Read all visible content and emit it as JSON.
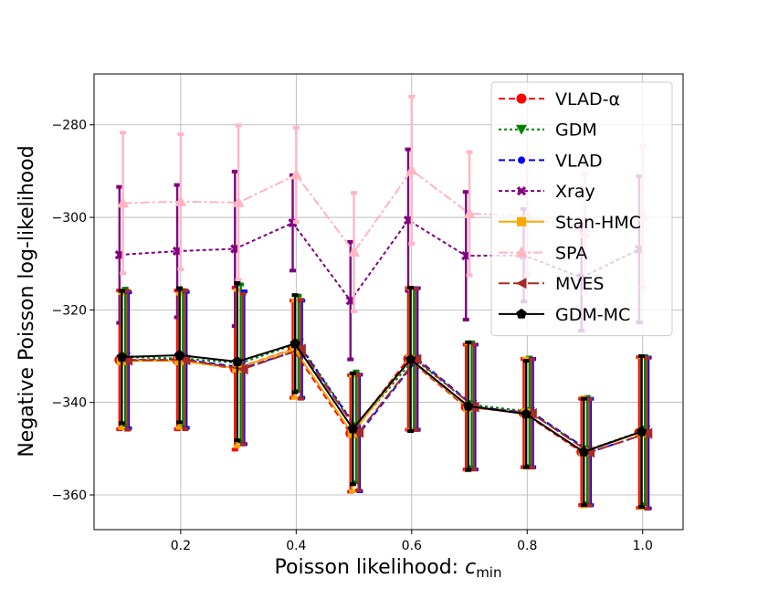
{
  "chart_data": {
    "type": "line",
    "title": "",
    "xlabel": "Poisson likelihood: ",
    "xlabel_symbol": "c",
    "xlabel_subscript": "min",
    "ylabel": "Negative Poisson log-likelihood",
    "xlim": [
      0.05,
      1.07
    ],
    "ylim": [
      -367.5,
      -269
    ],
    "xticks": [
      0.2,
      0.4,
      0.6,
      0.8,
      1.0
    ],
    "xtick_labels": [
      "0.2",
      "0.4",
      "0.6",
      "0.8",
      "1.0"
    ],
    "yticks": [
      -360,
      -340,
      -320,
      -300,
      -280
    ],
    "ytick_labels": [
      "−360",
      "−340",
      "−320",
      "−300",
      "−280"
    ],
    "grid": true,
    "legend_position": "top-right",
    "series": [
      {
        "name": "VLAD-α",
        "color": "#ff0000",
        "dash": "7,4",
        "marker": "circle",
        "offset": -0.006,
        "x": [
          0.1,
          0.2,
          0.3,
          0.4,
          0.5,
          0.6,
          0.7,
          0.8,
          0.9,
          1.0
        ],
        "y": [
          -330.8,
          -330.8,
          -332.7,
          -328.5,
          -346.7,
          -330.6,
          -341.0,
          -342.3,
          -350.7,
          -346.5
        ],
        "err": [
          15.0,
          15.0,
          17.5,
          10.5,
          12.6,
          15.3,
          13.5,
          11.7,
          11.5,
          16.3
        ]
      },
      {
        "name": "GDM",
        "color": "#008000",
        "dash": "3,3",
        "marker": "triangle-down",
        "offset": 0.004,
        "x": [
          0.1,
          0.2,
          0.3,
          0.4,
          0.5,
          0.6,
          0.7,
          0.8,
          0.9,
          1.0
        ],
        "y": [
          -330.2,
          -330.5,
          -331.5,
          -327.2,
          -345.3,
          -330.6,
          -340.5,
          -342.0,
          -350.3,
          -346.0
        ],
        "err": [
          14.8,
          14.8,
          17.0,
          10.3,
          12.0,
          15.3,
          13.5,
          11.7,
          11.5,
          16.0
        ]
      },
      {
        "name": "VLAD",
        "color": "#0000ff",
        "dash": "7,4",
        "marker": "circle-small",
        "offset": 0.01,
        "x": [
          0.1,
          0.2,
          0.3,
          0.4,
          0.5,
          0.6,
          0.7,
          0.8,
          0.9,
          1.0
        ],
        "y": [
          -330.9,
          -330.8,
          -332.5,
          -328.5,
          -346.6,
          -330.6,
          -341.0,
          -342.3,
          -350.7,
          -346.6
        ],
        "err": [
          14.7,
          14.7,
          16.5,
          10.5,
          12.6,
          15.3,
          13.5,
          11.7,
          11.5,
          16.3
        ]
      },
      {
        "name": "Xray",
        "color": "#800080",
        "dash": "4,3",
        "marker": "x-filled",
        "offset": -0.006,
        "x": [
          0.1,
          0.2,
          0.3,
          0.4,
          0.5,
          0.6,
          0.7,
          0.8,
          0.9,
          1.0
        ],
        "y": [
          -308.1,
          -307.3,
          -306.8,
          -301.2,
          -318.0,
          -300.6,
          -308.3,
          -308.2,
          -313.0,
          -306.9
        ],
        "err": [
          14.7,
          14.3,
          16.7,
          10.3,
          12.7,
          15.3,
          13.8,
          10.0,
          11.5,
          15.8
        ]
      },
      {
        "name": "Stan-HMC",
        "color": "#ffa500",
        "dash": "",
        "marker": "square",
        "offset": -0.003,
        "x": [
          0.1,
          0.2,
          0.3,
          0.4,
          0.5,
          0.6,
          0.7,
          0.8,
          0.9,
          1.0
        ],
        "y": [
          -331.0,
          -331.0,
          -332.6,
          -328.5,
          -346.7,
          -330.7,
          -341.0,
          -342.3,
          -350.7,
          -346.5
        ],
        "err": [
          14.6,
          14.5,
          16.9,
          10.5,
          12.5,
          15.3,
          13.7,
          11.8,
          11.8,
          16.3
        ]
      },
      {
        "name": "SPA",
        "color": "#ffb6c1",
        "dash": "10,3,3,3",
        "marker": "triangle-up",
        "offset": 0.0,
        "x": [
          0.1,
          0.2,
          0.3,
          0.4,
          0.5,
          0.6,
          0.7,
          0.8,
          0.9,
          1.0
        ],
        "y": [
          -296.9,
          -296.6,
          -296.8,
          -290.8,
          -307.5,
          -289.8,
          -299.2,
          -299.6,
          -303.5,
          -299.8
        ],
        "err": [
          15.2,
          14.6,
          16.7,
          10.2,
          12.8,
          15.9,
          13.3,
          12.8,
          13.0,
          15.3
        ]
      },
      {
        "name": "MVES",
        "color": "#a52a2a",
        "dash": "12,4",
        "marker": "triangle-left",
        "offset": 0.008,
        "x": [
          0.1,
          0.2,
          0.3,
          0.4,
          0.5,
          0.6,
          0.7,
          0.8,
          0.9,
          1.0
        ],
        "y": [
          -330.9,
          -330.8,
          -332.8,
          -328.5,
          -346.5,
          -330.7,
          -341.0,
          -342.4,
          -350.8,
          -346.7
        ],
        "err": [
          15.0,
          15.0,
          16.3,
          10.7,
          12.5,
          15.3,
          13.5,
          11.7,
          11.5,
          16.3
        ]
      },
      {
        "name": "GDM-MC",
        "color": "#000000",
        "dash": "",
        "marker": "pentagon",
        "offset": -0.002,
        "x": [
          0.1,
          0.2,
          0.3,
          0.4,
          0.5,
          0.6,
          0.7,
          0.8,
          0.9,
          1.0
        ],
        "y": [
          -330.2,
          -329.8,
          -331.2,
          -327.3,
          -345.7,
          -330.7,
          -340.8,
          -342.5,
          -350.7,
          -346.3
        ],
        "err": [
          14.3,
          14.5,
          17.0,
          10.5,
          12.0,
          15.5,
          13.8,
          11.5,
          11.5,
          16.3
        ]
      }
    ]
  }
}
